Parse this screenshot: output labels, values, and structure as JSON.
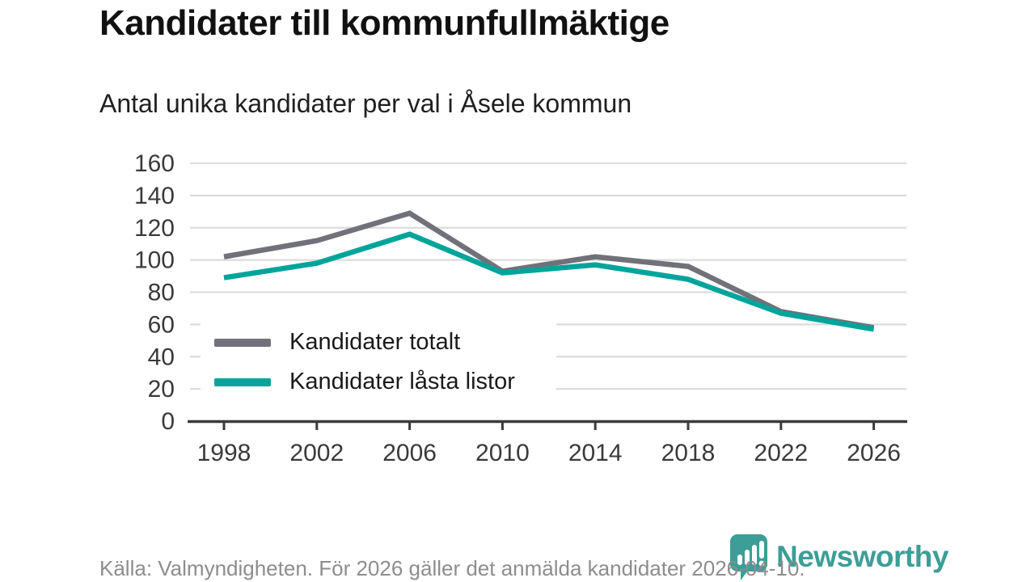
{
  "header": {
    "title": "Kandidater till kommunfullmäktige",
    "subtitle": "Antal unika kandidater per val i Åsele kommun"
  },
  "chart_data": {
    "type": "line",
    "x": [
      1998,
      2002,
      2006,
      2010,
      2014,
      2018,
      2022,
      2026
    ],
    "series": [
      {
        "name": "Kandidater totalt",
        "color": "#71717a",
        "values": [
          102,
          112,
          129,
          93,
          102,
          96,
          68,
          58
        ]
      },
      {
        "name": "Kandidater låsta listor",
        "color": "#00a49b",
        "values": [
          89,
          98,
          116,
          92,
          97,
          88,
          67,
          57
        ]
      }
    ],
    "ylim": [
      0,
      160
    ],
    "yticks": [
      0,
      20,
      40,
      60,
      80,
      100,
      120,
      140,
      160
    ],
    "grid": "horizontal",
    "legend_position": "inside-bottom-left",
    "title": "Kandidater till kommunfullmäktige",
    "subtitle": "Antal unika kandidater per val i Åsele kommun"
  },
  "footer": {
    "source_text": "Källa: Valmyndigheten. För 2026 gäller det anmälda kandidater 2026-04-10."
  },
  "logo": {
    "wordmark": "Newsworthy",
    "color": "#3c9e97"
  },
  "colors": {
    "grid": "#dcdcdc",
    "axis": "#3b3b3b",
    "tick_label": "#3a3a3a"
  }
}
